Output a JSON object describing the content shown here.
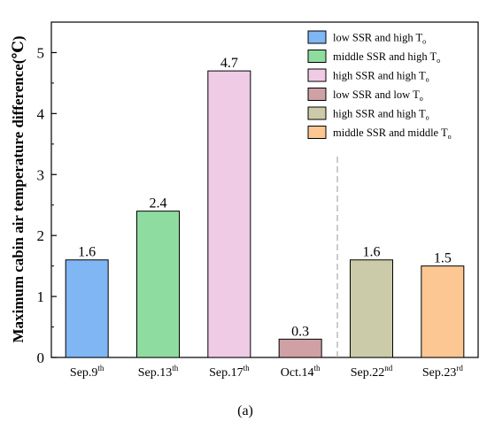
{
  "chart_data": {
    "type": "bar",
    "ylabel": "Maximum cabin air temperature difference(℃)",
    "ylim": [
      0,
      5.5
    ],
    "yticks": [
      "0",
      "1",
      "2",
      "3",
      "4",
      "5"
    ],
    "categories": [
      {
        "base": "Sep.9",
        "sup": "th"
      },
      {
        "base": "Sep.13",
        "sup": "th"
      },
      {
        "base": "Sep.17",
        "sup": "th"
      },
      {
        "base": "Oct.14",
        "sup": "th"
      },
      {
        "base": "Sep.22",
        "sup": "nd"
      },
      {
        "base": "Sep.23",
        "sup": "rd"
      }
    ],
    "values": [
      1.6,
      2.4,
      4.7,
      0.3,
      1.6,
      1.5
    ],
    "value_labels": [
      "1.6",
      "2.4",
      "4.7",
      "0.3",
      "1.6",
      "1.5"
    ],
    "colors": [
      "#7fb6f3",
      "#8fdca0",
      "#efcbe6",
      "#cfa1a4",
      "#cbcba9",
      "#fdc793"
    ],
    "legend": {
      "position": "top-right",
      "entries": [
        {
          "text": "low SSR and high T",
          "sub": "o"
        },
        {
          "text": "middle SSR and high T",
          "sub": "o"
        },
        {
          "text": "high SSR and high T",
          "sub": "o"
        },
        {
          "text": "low SSR and low T",
          "sub": "o"
        },
        {
          "text": "high SSR and high T",
          "sub": "o"
        },
        {
          "text": "middle SSR and middle T",
          "sub": "o"
        }
      ]
    },
    "separator": "dashed line between Oct.14th and Sep.22nd",
    "grid": false,
    "caption": "(a)"
  }
}
